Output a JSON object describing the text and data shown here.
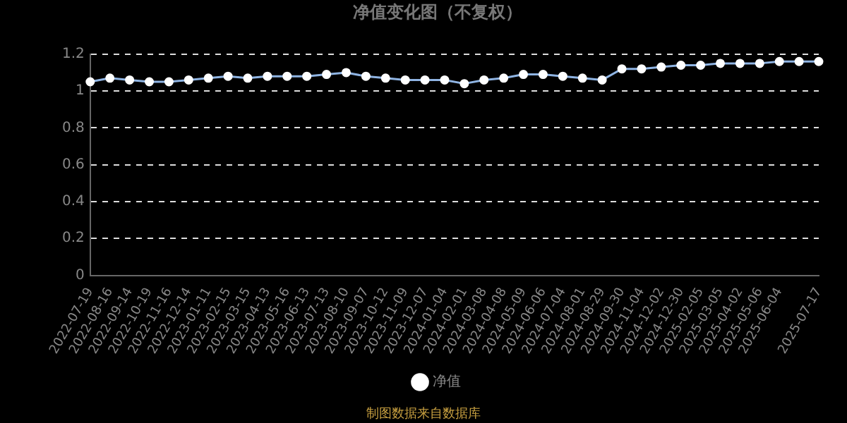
{
  "chart_data": {
    "type": "line",
    "title": "净值变化图（不复权）",
    "categories": [
      "2022-07-19",
      "2022-08-16",
      "2022-09-14",
      "2022-10-19",
      "2022-11-16",
      "2022-12-14",
      "2023-01-11",
      "2023-02-15",
      "2023-03-15",
      "2023-04-13",
      "2023-05-16",
      "2023-06-13",
      "2023-07-13",
      "2023-08-10",
      "2023-09-07",
      "2023-10-12",
      "2023-11-09",
      "2023-12-07",
      "2024-01-04",
      "2024-02-01",
      "2024-03-08",
      "2024-04-08",
      "2024-05-09",
      "2024-06-06",
      "2024-07-04",
      "2024-08-01",
      "2024-08-29",
      "2024-09-30",
      "2024-11-04",
      "2024-12-02",
      "2024-12-30",
      "2025-02-05",
      "2025-03-05",
      "2025-04-02",
      "2025-05-06",
      "2025-06-04",
      null,
      "2025-07-17"
    ],
    "series": [
      {
        "name": "净值",
        "color": "#8fb4e3",
        "values": [
          1.05,
          1.07,
          1.06,
          1.05,
          1.05,
          1.06,
          1.07,
          1.08,
          1.07,
          1.08,
          1.08,
          1.08,
          1.09,
          1.1,
          1.08,
          1.07,
          1.06,
          1.06,
          1.06,
          1.04,
          1.06,
          1.07,
          1.09,
          1.09,
          1.08,
          1.07,
          1.06,
          1.12,
          1.12,
          1.13,
          1.14,
          1.14,
          1.15,
          1.15,
          1.15,
          1.16,
          1.16,
          1.16
        ]
      }
    ],
    "ylim": [
      0,
      1.2
    ],
    "yticks": [
      0,
      0.2,
      0.4,
      0.6,
      0.8,
      1,
      1.2
    ],
    "grid": "y",
    "legend": "bottom",
    "marker": "circle",
    "annotations": [
      "制图数据来自数据库"
    ]
  }
}
